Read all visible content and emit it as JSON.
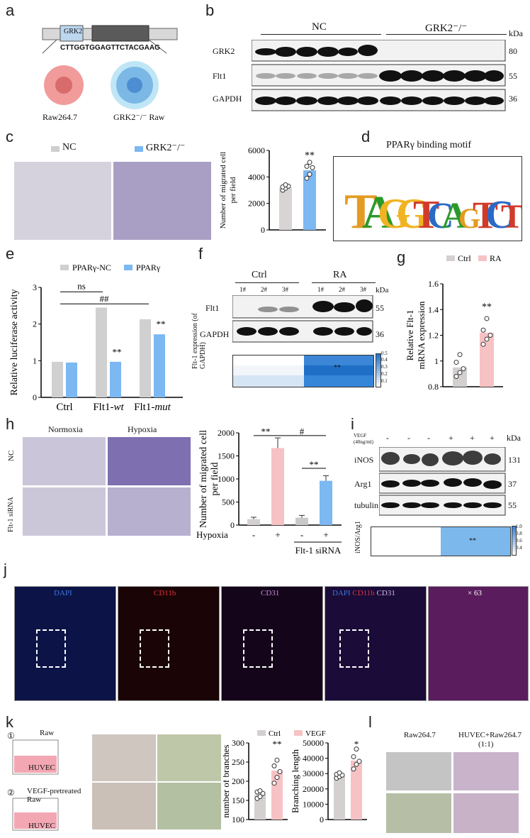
{
  "panel_labels": [
    "a",
    "b",
    "c",
    "d",
    "e",
    "f",
    "g",
    "h",
    "i",
    "j",
    "k",
    "l"
  ],
  "a": {
    "vector_label": "GRK2",
    "sequence": "CTTGGTGGAGTTCTACGAAG",
    "cell_left": "Raw264.7",
    "cell_right": "GRK2⁻/⁻ Raw"
  },
  "b": {
    "group1": "NC",
    "group2": "GRK2⁻/⁻",
    "unit": "kDa",
    "rows": [
      {
        "name": "GRK2",
        "kda": "80"
      },
      {
        "name": "Flt1",
        "kda": "55"
      },
      {
        "name": "GAPDH",
        "kda": "36"
      }
    ]
  },
  "c": {
    "legend_nc": "NC",
    "legend_ko": "GRK2⁻/⁻",
    "sig": "**"
  },
  "d": {
    "title": "PPARγ binding motif"
  },
  "e": {
    "legend1": "PPARγ-NC",
    "legend2": "PPARγ",
    "ns": "ns",
    "hash": "##"
  },
  "f": {
    "group1": "Ctrl",
    "group2": "RA",
    "lanes": [
      "1#",
      "2#",
      "3#",
      "1#",
      "2#",
      "3#"
    ],
    "unit": "kDa",
    "rows": [
      {
        "name": "Flt1",
        "kda": "55"
      },
      {
        "name": "GAPDH",
        "kda": "36"
      }
    ],
    "heatmap_label": "Flt-1 expression (of GAPDH)",
    "heat_sig": "**",
    "scale": [
      "0.5",
      "0.4",
      "0.3",
      "0.2",
      "0.1"
    ]
  },
  "g": {
    "legend1": "Ctrl",
    "legend2": "RA",
    "sig": "**"
  },
  "h": {
    "col1": "Normoxia",
    "col2": "Hypoxia",
    "row1": "NC",
    "row2": "Flt-1 siRNA",
    "hypoxia": "Hypoxia",
    "signs": [
      "-",
      "+",
      "-",
      "+"
    ],
    "sirna": "Flt-1 siRNA",
    "sig1": "**",
    "sig2": "#",
    "sig3": "**"
  },
  "i": {
    "vegf": "VEGF (40ng/ml)",
    "signs": [
      "-",
      "-",
      "-",
      "+",
      "+",
      "+"
    ],
    "unit": "kDa",
    "rows": [
      {
        "name": "iNOS",
        "kda": "131"
      },
      {
        "name": "Arg1",
        "kda": "37"
      },
      {
        "name": "tubulin",
        "kda": "55"
      }
    ],
    "heat_label": "iNOS/Arg1",
    "heat_sig": "**",
    "scale": [
      "1.0",
      "0.8",
      "0.6",
      "0.4"
    ]
  },
  "j": {
    "dapi": "DAPI",
    "cd11b": "CD11b",
    "cd31": "CD31",
    "mag": "× 63"
  },
  "k": {
    "step1": "①",
    "step2": "②",
    "raw": "Raw",
    "vegf_raw1": "VEGF-pretreated",
    "vegf_raw2": "Raw",
    "huvec": "HUVEC",
    "legend1": "Ctrl",
    "legend2": "VEGF",
    "sig1": "**",
    "sig2": "*"
  },
  "l": {
    "col1": "Raw264.7",
    "col2a": "HUVEC+Raw264.7",
    "col2b": "(1:1)"
  },
  "chart_data": [
    {
      "type": "bar",
      "panel": "c",
      "categories": [
        "NC",
        "GRK2⁻/⁻"
      ],
      "values": [
        3200,
        4500
      ],
      "points": [
        [
          3000,
          3150,
          3300,
          3250,
          3400
        ],
        [
          3900,
          4200,
          4700,
          4800,
          5100
        ]
      ],
      "ylabel": "Number of migrated cell per field",
      "ylim": [
        0,
        6000
      ],
      "yticks": [
        0,
        2000,
        4000,
        6000
      ]
    },
    {
      "type": "bar",
      "panel": "e",
      "categories": [
        "Ctrl",
        "Flt1-wt",
        "Flt1-mut"
      ],
      "series": [
        {
          "name": "PPARγ-NC",
          "values": [
            0.97,
            2.45,
            2.13
          ]
        },
        {
          "name": "PPARγ",
          "values": [
            0.95,
            0.97,
            1.72
          ]
        }
      ],
      "ylabel": "Relative luciferase activity",
      "ylim": [
        0,
        3
      ],
      "yticks": [
        0,
        1,
        2,
        3
      ]
    },
    {
      "type": "bar",
      "panel": "g",
      "categories": [
        "Ctrl",
        "RA"
      ],
      "values": [
        0.95,
        1.22
      ],
      "points": [
        [
          0.88,
          0.91,
          0.94,
          0.99,
          1.05
        ],
        [
          1.13,
          1.17,
          1.2,
          1.24,
          1.33
        ]
      ],
      "ylabel": "Relative Flt-1 mRNA expression",
      "ylim": [
        0.8,
        1.6
      ],
      "yticks": [
        0.8,
        1.0,
        1.2,
        1.4,
        1.6
      ]
    },
    {
      "type": "bar",
      "panel": "h",
      "categories": [
        "1",
        "2",
        "3",
        "4"
      ],
      "values": [
        130,
        1670,
        160,
        960
      ],
      "errors": [
        40,
        220,
        50,
        110
      ],
      "ylabel": "Number of migrated cell per field",
      "ylim": [
        0,
        2000
      ],
      "yticks": [
        0,
        500,
        1000,
        1500,
        2000
      ]
    },
    {
      "type": "bar",
      "panel": "k1",
      "categories": [
        "Ctrl",
        "VEGF"
      ],
      "values": [
        165,
        228
      ],
      "points": [
        [
          155,
          160,
          168,
          172,
          175
        ],
        [
          195,
          210,
          225,
          240,
          255
        ]
      ],
      "ylabel": "number of branches",
      "ylim": [
        100,
        300
      ],
      "yticks": [
        100,
        150,
        200,
        250,
        300
      ]
    },
    {
      "type": "bar",
      "panel": "k2",
      "categories": [
        "Ctrl",
        "VEGF"
      ],
      "values": [
        28500,
        38500
      ],
      "points": [
        [
          27000,
          28000,
          29000,
          29500,
          30500
        ],
        [
          33000,
          36000,
          38000,
          41000,
          46000
        ]
      ],
      "ylabel": "Branching length",
      "ylim": [
        0,
        50000
      ],
      "yticks": [
        0,
        10000,
        20000,
        30000,
        40000,
        50000
      ]
    }
  ]
}
